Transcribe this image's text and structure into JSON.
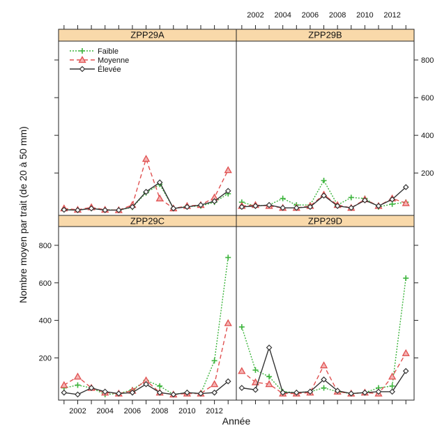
{
  "chart_data": {
    "type": "line",
    "xlabel": "Année",
    "ylabel": "Nombre moyen par trait (de 20 à 50 mm)",
    "xlim": [
      2000.6,
      2013.6
    ],
    "ylim": [
      -25,
      900
    ],
    "x_ticks": [
      2002,
      2004,
      2006,
      2008,
      2010,
      2012
    ],
    "y_ticks": [
      200,
      400,
      600,
      800
    ],
    "legend": {
      "placement": "top-left of panel ZPP29A",
      "entries": [
        "Faible",
        "Moyenne",
        "Élevée"
      ]
    },
    "series_styles": [
      {
        "name": "Faible",
        "color": "#3cb43c",
        "dash": "2,2",
        "marker": "plus"
      },
      {
        "name": "Moyenne",
        "color": "#e05050",
        "dash": "6,4",
        "marker": "triangle"
      },
      {
        "name": "Élevée",
        "color": "#333333",
        "dash": "",
        "marker": "diamond"
      }
    ],
    "x": [
      2001,
      2002,
      2003,
      2004,
      2005,
      2006,
      2007,
      2008,
      2009,
      2010,
      2011,
      2012,
      2013
    ],
    "panels": [
      {
        "title": "ZPP29A",
        "series": [
          {
            "name": "Faible",
            "values": [
              8,
              3,
              12,
              5,
              3,
              18,
              95,
              140,
              12,
              22,
              25,
              45,
              90
            ]
          },
          {
            "name": "Moyenne",
            "values": [
              12,
              5,
              18,
              5,
              3,
              30,
              275,
              65,
              12,
              25,
              30,
              70,
              215
            ]
          },
          {
            "name": "Élevée",
            "values": [
              5,
              3,
              12,
              3,
              3,
              20,
              100,
              150,
              12,
              20,
              30,
              50,
              105
            ]
          }
        ]
      },
      {
        "title": "ZPP29B",
        "series": [
          {
            "name": "Faible",
            "values": [
              45,
              25,
              30,
              65,
              30,
              30,
              160,
              30,
              70,
              65,
              20,
              35,
              45
            ]
          },
          {
            "name": "Moyenne",
            "values": [
              25,
              30,
              25,
              15,
              15,
              25,
              85,
              30,
              15,
              60,
              25,
              65,
              40
            ]
          },
          {
            "name": "Élevée",
            "values": [
              20,
              25,
              30,
              15,
              15,
              20,
              80,
              25,
              15,
              55,
              25,
              60,
              125
            ]
          }
        ]
      },
      {
        "title": "ZPP29C",
        "series": [
          {
            "name": "Faible",
            "values": [
              40,
              55,
              40,
              5,
              10,
              30,
              80,
              50,
              5,
              15,
              10,
              185,
              735
            ]
          },
          {
            "name": "Moyenne",
            "values": [
              55,
              100,
              40,
              15,
              10,
              25,
              80,
              15,
              5,
              10,
              10,
              60,
              385
            ]
          },
          {
            "name": "Élevée",
            "values": [
              15,
              5,
              40,
              20,
              10,
              15,
              60,
              15,
              5,
              15,
              10,
              15,
              75
            ]
          }
        ]
      },
      {
        "title": "ZPP29D",
        "series": [
          {
            "name": "Faible",
            "values": [
              365,
              135,
              100,
              20,
              15,
              20,
              40,
              20,
              10,
              15,
              40,
              50,
              625
            ]
          },
          {
            "name": "Moyenne",
            "values": [
              130,
              70,
              60,
              10,
              10,
              15,
              160,
              20,
              10,
              15,
              10,
              100,
              225
            ]
          },
          {
            "name": "Élevée",
            "values": [
              40,
              30,
              255,
              15,
              15,
              20,
              85,
              25,
              10,
              15,
              20,
              20,
              130
            ]
          }
        ]
      }
    ]
  }
}
